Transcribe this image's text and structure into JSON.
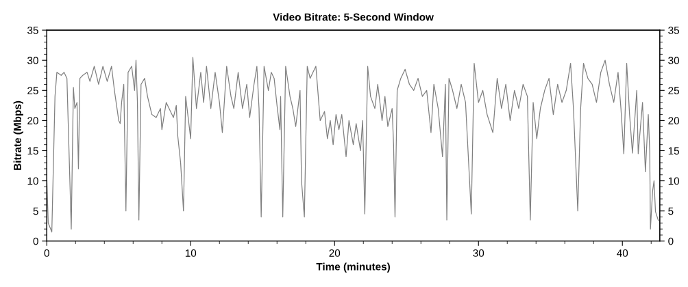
{
  "chart_data": {
    "type": "line",
    "title": "Video Bitrate: 5-Second Window",
    "xlabel": "Time (minutes)",
    "ylabel": "Bitrate (Mbps)",
    "xlim": [
      0,
      42.6
    ],
    "xticks": [
      0,
      10,
      20,
      30,
      40
    ],
    "ylim": [
      0,
      35
    ],
    "yticks": [
      0,
      5,
      10,
      15,
      20,
      25,
      30,
      35
    ],
    "y2lim": [
      0,
      35
    ],
    "y2ticks": [
      0,
      5,
      10,
      15,
      20,
      25,
      30,
      35
    ],
    "grid": false,
    "marker": "none",
    "line_style": "solid",
    "series": [
      {
        "color": "#808080",
        "x": [
          0,
          0.1,
          0.35,
          0.57,
          0.7,
          1.0,
          1.2,
          1.4,
          1.7,
          1.85,
          1.95,
          2.1,
          2.2,
          2.3,
          2.5,
          2.8,
          3.0,
          3.3,
          3.6,
          3.9,
          4.2,
          4.5,
          4.7,
          5.0,
          5.1,
          5.2,
          5.35,
          5.5,
          5.65,
          5.9,
          6.1,
          6.2,
          6.3,
          6.4,
          6.55,
          6.8,
          7.0,
          7.3,
          7.6,
          7.9,
          8.0,
          8.3,
          8.6,
          8.8,
          9.0,
          9.1,
          9.3,
          9.5,
          9.65,
          9.8,
          10.0,
          10.15,
          10.4,
          10.7,
          10.9,
          11.1,
          11.4,
          11.7,
          12.0,
          12.2,
          12.5,
          12.8,
          13.0,
          13.3,
          13.6,
          13.9,
          14.1,
          14.4,
          14.6,
          14.75,
          14.9,
          15.1,
          15.4,
          15.6,
          15.8,
          16.0,
          16.2,
          16.25,
          16.4,
          16.6,
          16.9,
          17.1,
          17.3,
          17.6,
          17.7,
          17.9,
          18.1,
          18.3,
          18.5,
          18.7,
          19.0,
          19.3,
          19.5,
          19.7,
          19.9,
          20.1,
          20.3,
          20.5,
          20.8,
          21.0,
          21.3,
          21.5,
          21.8,
          21.95,
          22.1,
          22.3,
          22.5,
          22.8,
          23.0,
          23.3,
          23.5,
          23.7,
          24.0,
          24.1,
          24.2,
          24.35,
          24.6,
          24.9,
          25.2,
          25.5,
          25.8,
          26.1,
          26.4,
          26.7,
          26.9,
          27.2,
          27.5,
          27.7,
          27.8,
          27.95,
          28.2,
          28.5,
          28.8,
          29.1,
          29.5,
          29.7,
          30.0,
          30.3,
          30.6,
          31.0,
          31.3,
          31.6,
          31.9,
          32.2,
          32.5,
          32.8,
          33.1,
          33.4,
          33.6,
          33.8,
          34.05,
          34.3,
          34.6,
          34.9,
          35.2,
          35.5,
          35.8,
          36.1,
          36.4,
          36.6,
          36.9,
          37.1,
          37.3,
          37.6,
          37.9,
          38.2,
          38.5,
          38.8,
          39.1,
          39.4,
          39.7,
          39.9,
          40.1,
          40.3,
          40.5,
          40.7,
          41.0,
          41.1,
          41.4,
          41.6,
          41.8,
          41.9,
          41.95,
          42.1,
          42.2,
          42.3,
          42.5
        ],
        "values": [
          10.6,
          3,
          1.5,
          24,
          28,
          27.5,
          28,
          27,
          2,
          25.5,
          22,
          23,
          12,
          27,
          27.5,
          28,
          26.5,
          29,
          26,
          29,
          26.5,
          29,
          25,
          20,
          19.5,
          23,
          26,
          5,
          28,
          29,
          25,
          30,
          23,
          3.5,
          26,
          27,
          24,
          21,
          20.5,
          22,
          18.5,
          23,
          21.5,
          20.5,
          22.5,
          17.5,
          13,
          5,
          24,
          21,
          17,
          30.5,
          22,
          28,
          23,
          29,
          22,
          28,
          23,
          18,
          29,
          24,
          22,
          28,
          22,
          26,
          20.5,
          26,
          29,
          22,
          4,
          29,
          25,
          28,
          27,
          22.5,
          18.5,
          24,
          4,
          29,
          24,
          22,
          19,
          25,
          10,
          4,
          29,
          27,
          28,
          29,
          20,
          21.5,
          17,
          20,
          16,
          21,
          18.5,
          21,
          14,
          20,
          16,
          19.5,
          15,
          20,
          4.5,
          29,
          24,
          22,
          26,
          20,
          24,
          19,
          22,
          16,
          4,
          25,
          27,
          28.5,
          26,
          25,
          27,
          24,
          25,
          18,
          26,
          22,
          14,
          26,
          3.5,
          27,
          25,
          22,
          26,
          23,
          4.5,
          29.5,
          23,
          25,
          21,
          18,
          27,
          22,
          26,
          20,
          25,
          22,
          26,
          24,
          3.5,
          23,
          17,
          22,
          25,
          27,
          21,
          26,
          23,
          25,
          29.5,
          22,
          5,
          22,
          29.5,
          27,
          26,
          23,
          28,
          30,
          26,
          23,
          28,
          22,
          14.5,
          29.5,
          21,
          14.6,
          25,
          14.5,
          23,
          11.5,
          21,
          15,
          2,
          8.3,
          10,
          4.9,
          3.4
        ]
      }
    ]
  }
}
